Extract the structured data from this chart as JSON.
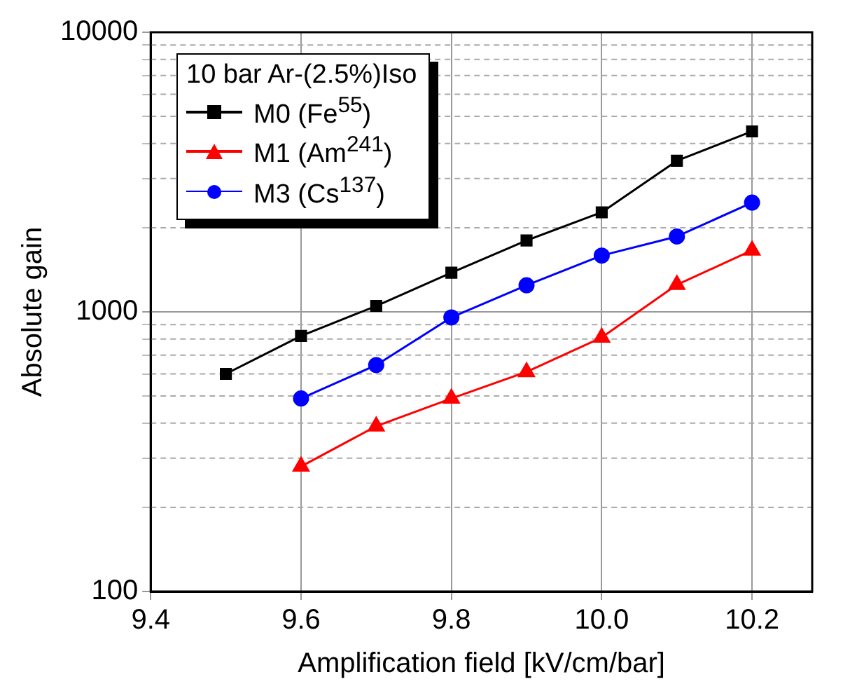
{
  "chart_data": {
    "type": "line",
    "xlabel": "Amplification field [kV/cm/bar]",
    "ylabel": "Absolute gain",
    "legend_title": "10 bar Ar-(2.5%)Iso",
    "legend": "top left",
    "log": "y",
    "grid": true,
    "line_style": "solid",
    "xlim": [
      9.4,
      10.28
    ],
    "xticks": [
      {
        "value": 9.4,
        "label": "9.4"
      },
      {
        "value": 9.6,
        "label": "9.6"
      },
      {
        "value": 9.8,
        "label": "9.8"
      },
      {
        "value": 10.0,
        "label": "10.0"
      },
      {
        "value": 10.2,
        "label": "10.2"
      }
    ],
    "ylim": [
      100,
      10000
    ],
    "yticks": [
      100,
      {
        "value": 200,
        "label": null
      },
      {
        "value": 300,
        "label": null
      },
      {
        "value": 400,
        "label": null
      },
      {
        "value": 500,
        "label": null
      },
      {
        "value": 600,
        "label": null
      },
      {
        "value": 700,
        "label": null
      },
      {
        "value": 800,
        "label": null
      },
      {
        "value": 900,
        "label": null
      },
      1000,
      {
        "value": 2000,
        "label": null
      },
      {
        "value": 3000,
        "label": null
      },
      {
        "value": 4000,
        "label": null
      },
      {
        "value": 5000,
        "label": null
      },
      {
        "value": 6000,
        "label": null
      },
      {
        "value": 7000,
        "label": null
      },
      {
        "value": 8000,
        "label": null
      },
      {
        "value": 9000,
        "label": null
      },
      10000
    ],
    "series": [
      {
        "name": "M0 (Fe$^{55}$)",
        "color": "#000000",
        "marker": "square",
        "x": [
          9.5,
          9.6,
          9.7,
          9.8,
          9.9,
          10.0,
          10.1,
          10.2
        ],
        "values": [
          600,
          820,
          1050,
          1380,
          1800,
          2270,
          3470,
          4420
        ]
      },
      {
        "name": "M1 (Am$^{241}$)",
        "color": "#ff0000",
        "marker": "triangle",
        "x": [
          9.6,
          9.7,
          9.8,
          9.9,
          10.0,
          10.1,
          10.2
        ],
        "values": [
          280,
          390,
          490,
          610,
          810,
          1250,
          1660
        ]
      },
      {
        "name": "M3 (Cs$^{137}$)",
        "color": "#0000ff",
        "marker": "circle",
        "x": [
          9.6,
          9.7,
          9.8,
          9.9,
          10.0,
          10.1,
          10.2
        ],
        "values": [
          490,
          645,
          955,
          1245,
          1590,
          1860,
          2460
        ]
      }
    ]
  }
}
